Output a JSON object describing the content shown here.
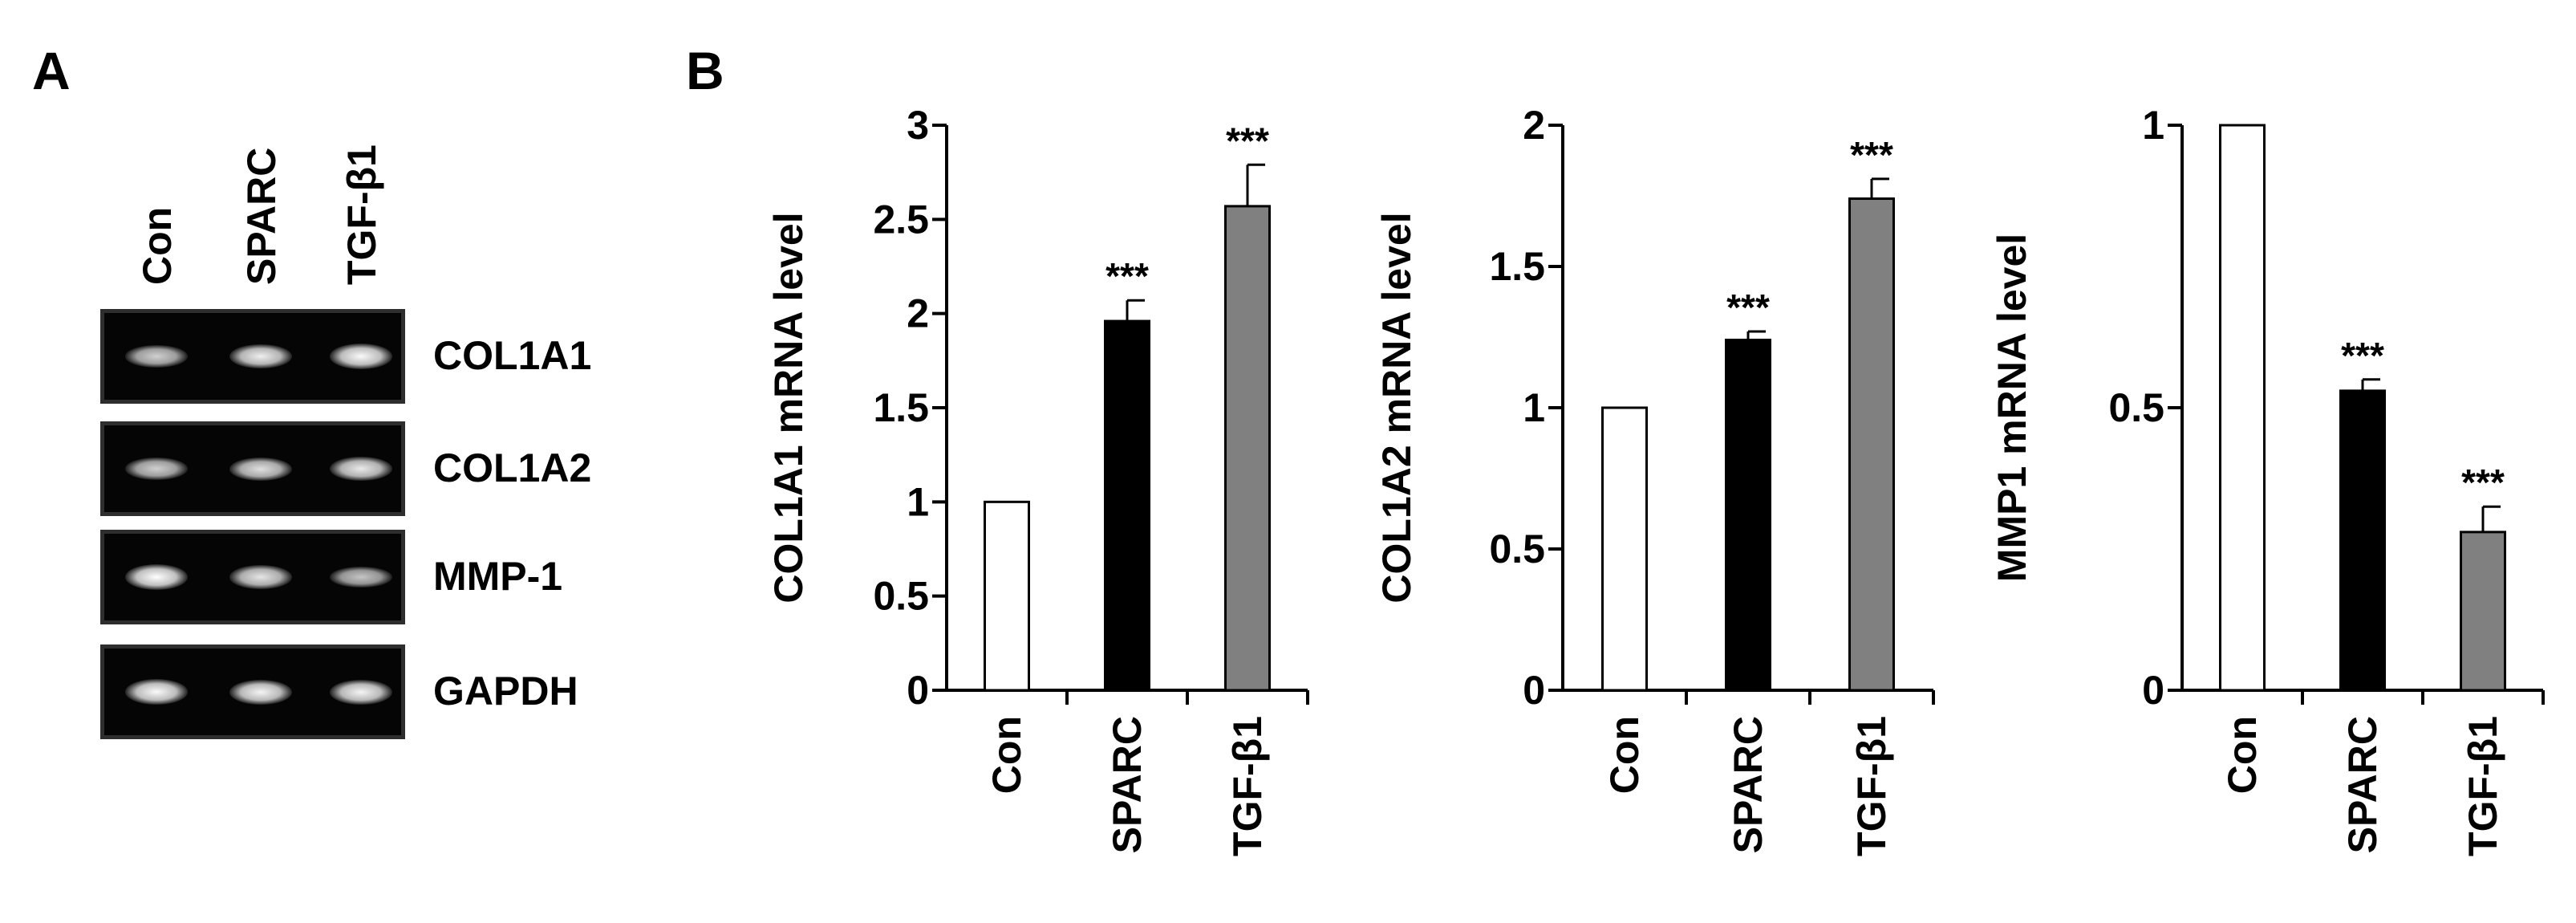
{
  "panels": {
    "a_label": "A",
    "b_label": "B"
  },
  "gel": {
    "lanes": [
      "Con",
      "SPARC",
      "TGF-β1"
    ],
    "rows": [
      {
        "gene": "COL1A1",
        "band_intensity": [
          0.55,
          0.85,
          0.95
        ]
      },
      {
        "gene": "COL1A2",
        "band_intensity": [
          0.55,
          0.7,
          0.8
        ]
      },
      {
        "gene": "MMP-1",
        "band_intensity": [
          1.0,
          0.75,
          0.45
        ]
      },
      {
        "gene": "GAPDH",
        "band_intensity": [
          0.95,
          0.9,
          0.9
        ]
      }
    ]
  },
  "chart_data": [
    {
      "type": "bar",
      "categories": [
        "Con",
        "SPARC",
        "TGF-β1"
      ],
      "values": [
        1,
        1.96,
        2.57
      ],
      "errors": [
        0,
        0.11,
        0.22
      ],
      "significance": [
        "",
        "***",
        "***"
      ],
      "bar_colors": [
        "#ffffff",
        "#000000",
        "#808080"
      ],
      "ylabel": "COL1A1  mRNA level",
      "ylim": [
        0,
        3
      ],
      "yticks": [
        0,
        0.5,
        1,
        1.5,
        2,
        2.5,
        3
      ],
      "ytick_labels": [
        "0",
        "0.5",
        "1",
        "1.5",
        "2",
        "2.5",
        "3"
      ]
    },
    {
      "type": "bar",
      "categories": [
        "Con",
        "SPARC",
        "TGF-β1"
      ],
      "values": [
        1,
        1.24,
        1.74
      ],
      "errors": [
        0,
        0.03,
        0.07
      ],
      "significance": [
        "",
        "***",
        "***"
      ],
      "bar_colors": [
        "#ffffff",
        "#000000",
        "#808080"
      ],
      "ylabel": "COL1A2  mRNA level",
      "ylim": [
        0,
        2
      ],
      "yticks": [
        0,
        0.5,
        1,
        1.5,
        2
      ],
      "ytick_labels": [
        "0",
        "0.5",
        "1",
        "1.5",
        "2"
      ]
    },
    {
      "type": "bar",
      "categories": [
        "Con",
        "SPARC",
        "TGF-β1"
      ],
      "values": [
        1,
        0.53,
        0.28
      ],
      "errors": [
        0,
        0.02,
        0.045
      ],
      "significance": [
        "",
        "***",
        "***"
      ],
      "bar_colors": [
        "#ffffff",
        "#000000",
        "#808080"
      ],
      "ylabel": "MMP1 mRNA level",
      "ylim": [
        0,
        1
      ],
      "yticks": [
        0,
        0.5,
        1
      ],
      "ytick_labels": [
        "0",
        "0.5",
        "1"
      ]
    }
  ]
}
